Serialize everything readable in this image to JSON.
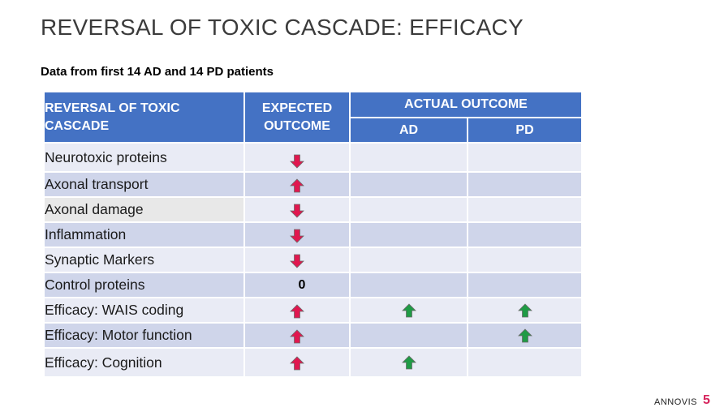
{
  "title": "REVERSAL OF TOXIC CASCADE: EFFICACY",
  "subtitle": "Data from first 14 AD and 14 PD patients",
  "colors": {
    "header_bg": "#4472c4",
    "row_light": "#e9ebf5",
    "row_dark": "#cfd5ea",
    "arrow_red": "#e0174f",
    "arrow_green": "#1f9b45",
    "page_number": "#d6245c"
  },
  "table": {
    "headers": {
      "col1": "REVERSAL OF TOXIC CASCADE",
      "col2": "EXPECTED OUTCOME",
      "group": "ACTUAL OUTCOME",
      "ad": "AD",
      "pd": "PD"
    },
    "rows": [
      {
        "label": "Neurotoxic proteins",
        "expected": "arrow-down-red",
        "ad": "",
        "pd": ""
      },
      {
        "label": "Axonal transport",
        "expected": "arrow-up-red",
        "ad": "",
        "pd": ""
      },
      {
        "label": "Axonal damage",
        "expected": "arrow-down-red",
        "ad": "",
        "pd": ""
      },
      {
        "label": "Inflammation",
        "expected": "arrow-down-red",
        "ad": "",
        "pd": ""
      },
      {
        "label": "Synaptic Markers",
        "expected": "arrow-down-red",
        "ad": "",
        "pd": ""
      },
      {
        "label": "Control proteins",
        "expected": "0",
        "ad": "",
        "pd": ""
      },
      {
        "label": "Efficacy: WAIS coding",
        "expected": "arrow-up-red",
        "ad": "arrow-up-green",
        "pd": "arrow-up-green"
      },
      {
        "label": "Efficacy: Motor function",
        "expected": "arrow-up-red",
        "ad": "",
        "pd": "arrow-up-green"
      },
      {
        "label": "Efficacy: Cognition",
        "expected": "arrow-up-red",
        "ad": "arrow-up-green",
        "pd": ""
      }
    ]
  },
  "footer": {
    "brand": "ANNOVIS",
    "page_number": "5"
  }
}
